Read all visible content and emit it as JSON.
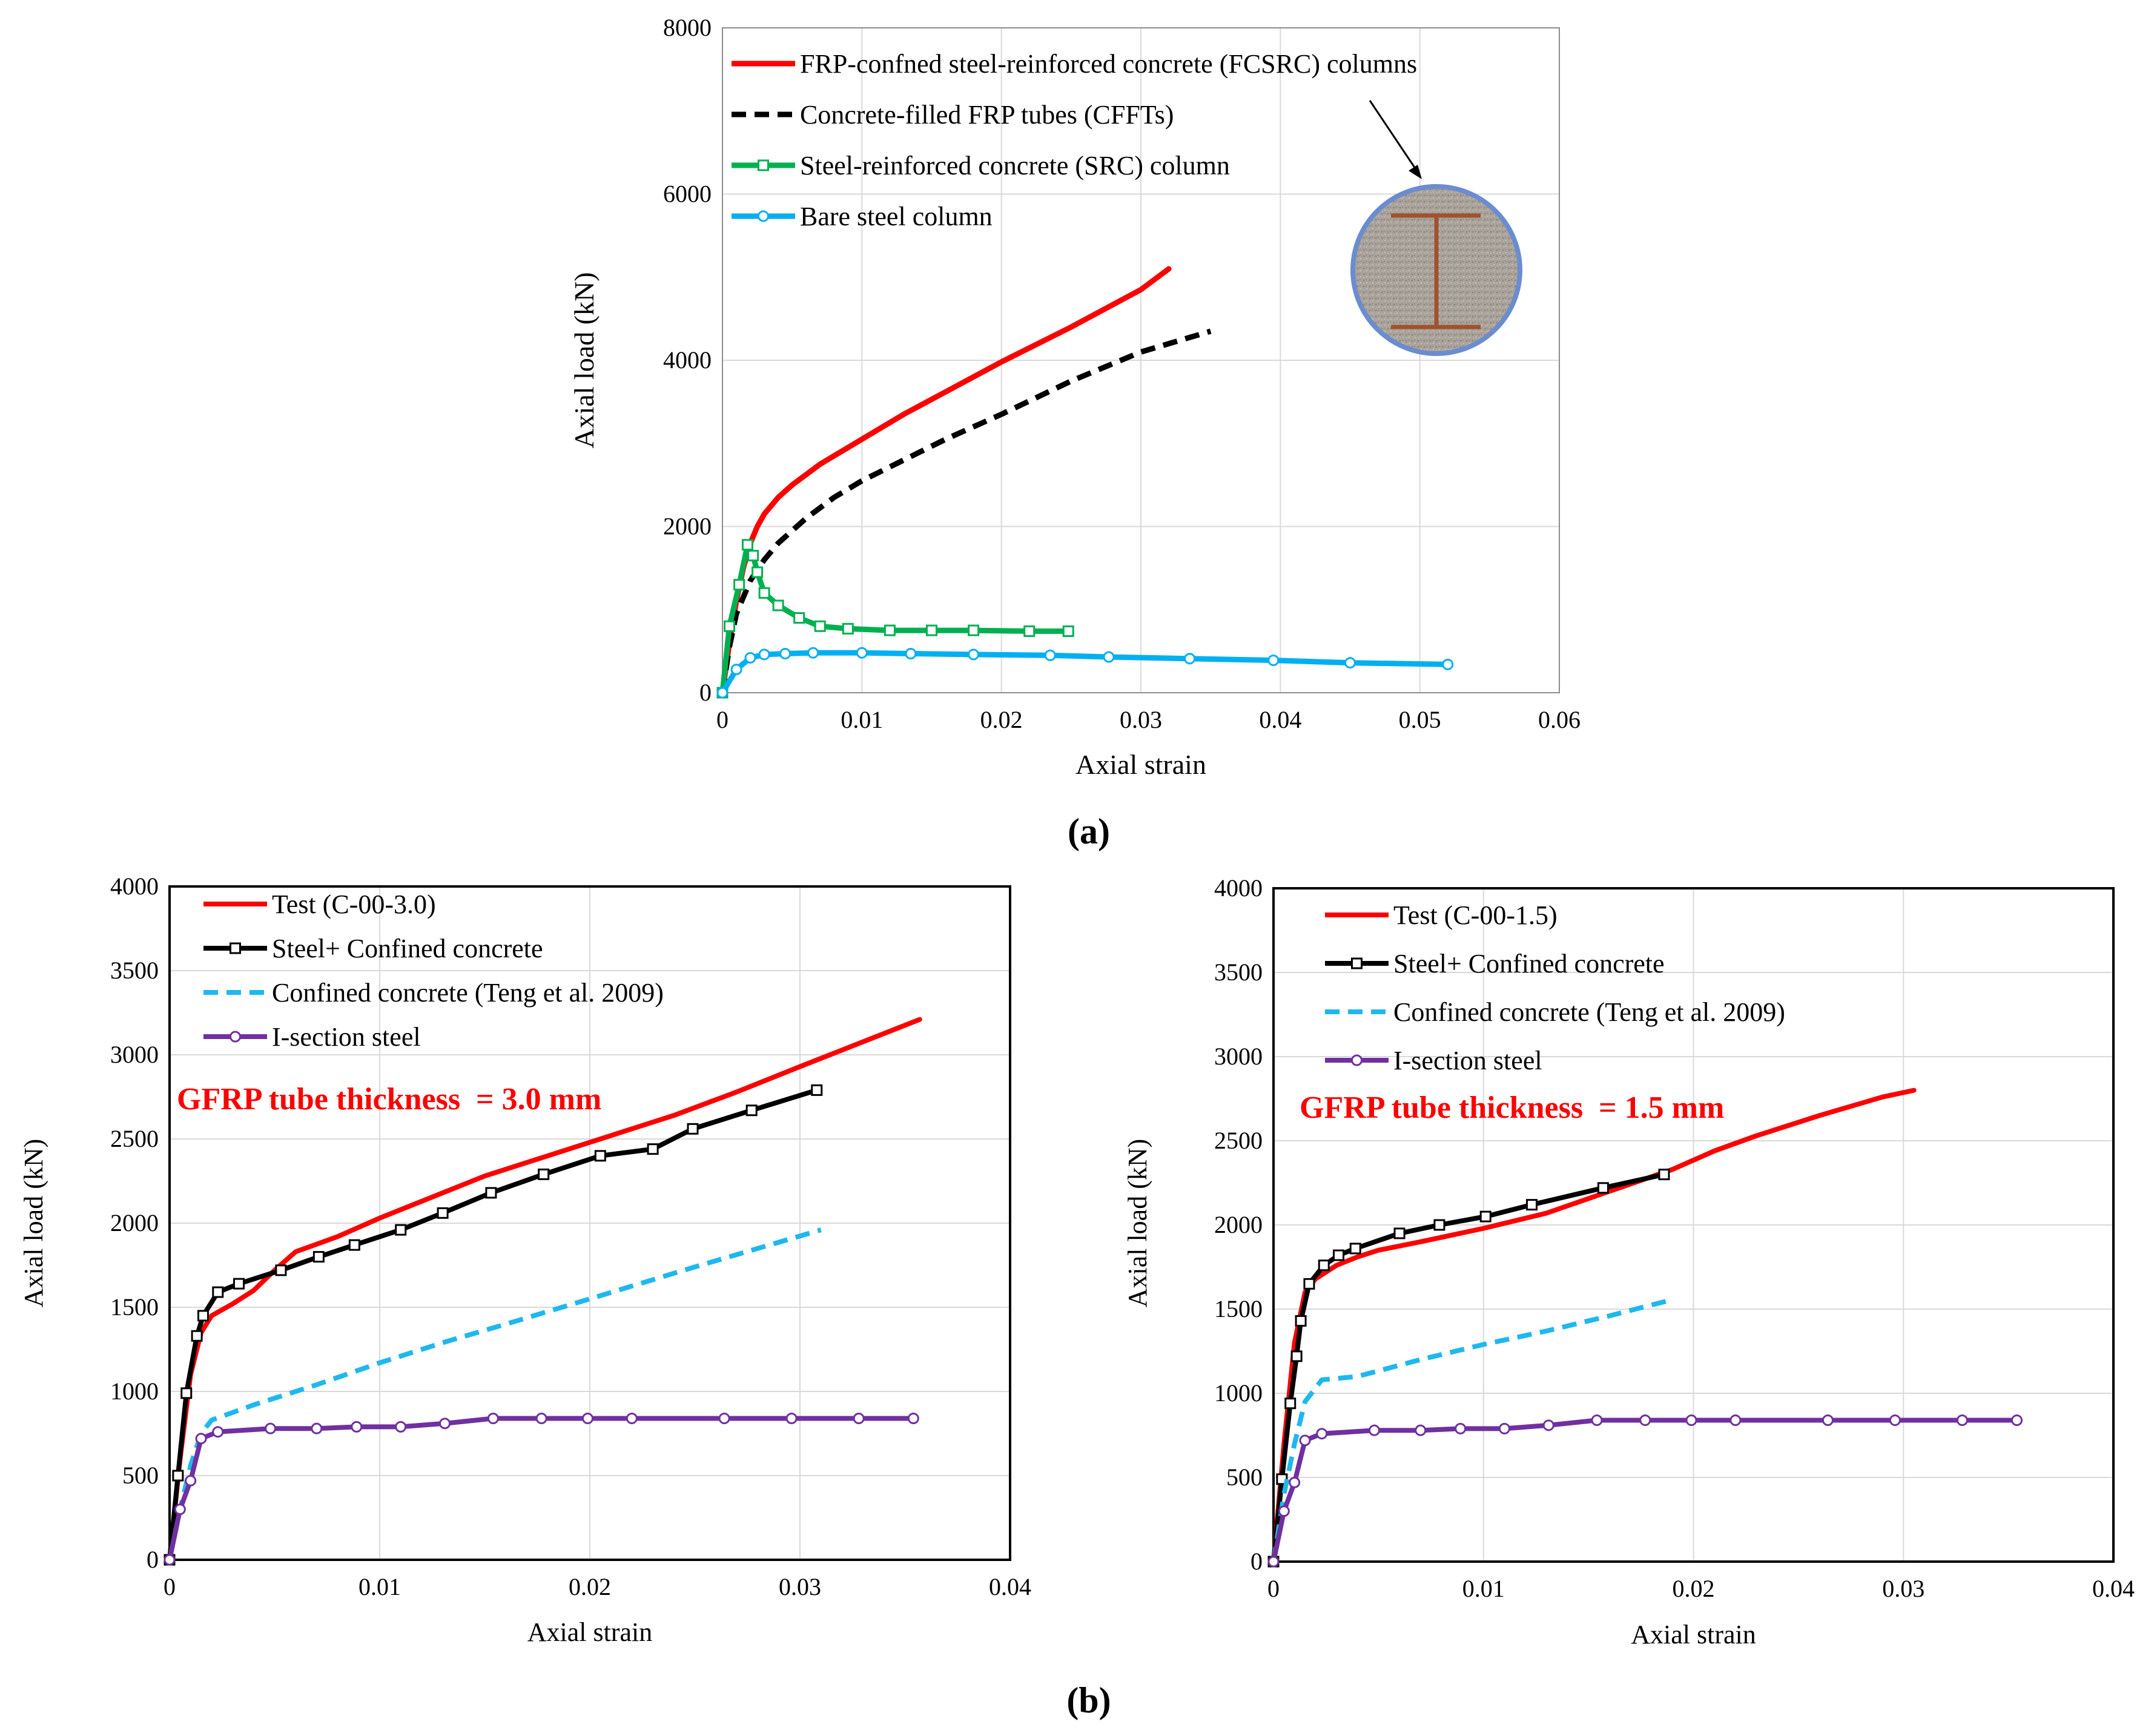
{
  "captions": {
    "a": "(a)",
    "b": "(b)"
  },
  "colors": {
    "red": "#ff0000",
    "black": "#000000",
    "green": "#00b050",
    "lightblue": "#00b0f0",
    "dashblue": "#1fb8ee",
    "purple": "#7030a0",
    "rebar": "#a0522d",
    "ring": "#6b8ccf"
  },
  "chart_data": [
    {
      "id": "a",
      "type": "line",
      "xlabel": "Axial strain",
      "ylabel": "Axial load (kN)",
      "xlim": [
        0,
        0.06
      ],
      "ylim": [
        0,
        8000
      ],
      "xticks": [
        0,
        0.01,
        0.02,
        0.03,
        0.04,
        0.05,
        0.06
      ],
      "xtick_labels": [
        "0",
        "0.01",
        "0.02",
        "0.03",
        "0.04",
        "0.05",
        "0.06"
      ],
      "yticks": [
        0,
        2000,
        4000,
        6000,
        8000
      ],
      "ytick_labels": [
        "0",
        "2000",
        "4000",
        "6000",
        "8000"
      ],
      "grid": true,
      "legend": "top-left",
      "annotation": "column cross-section: circular FRP tube with steel I-section",
      "series": [
        {
          "name": "FRP-confned steel-reinforced concrete (FCSRC) columns",
          "color": "red",
          "style": "solid",
          "marker": "none",
          "x": [
            0,
            0.0005,
            0.001,
            0.0015,
            0.002,
            0.0025,
            0.003,
            0.004,
            0.005,
            0.007,
            0.01,
            0.013,
            0.016,
            0.02,
            0.025,
            0.03,
            0.032
          ],
          "y": [
            0,
            600,
            1100,
            1500,
            1800,
            2000,
            2150,
            2350,
            2500,
            2750,
            3050,
            3350,
            3620,
            3980,
            4400,
            4850,
            5100
          ]
        },
        {
          "name": "Concrete-filled FRP tubes (CFFTs)",
          "color": "black",
          "style": "dashed",
          "marker": "none",
          "x": [
            0,
            0.0005,
            0.001,
            0.002,
            0.003,
            0.004,
            0.006,
            0.008,
            0.01,
            0.013,
            0.016,
            0.02,
            0.025,
            0.03,
            0.035
          ],
          "y": [
            0,
            550,
            950,
            1350,
            1600,
            1800,
            2100,
            2350,
            2550,
            2800,
            3050,
            3350,
            3750,
            4100,
            4350
          ]
        },
        {
          "name": "Steel-reinforced concrete (SRC) column",
          "color": "green",
          "style": "solid",
          "marker": "square",
          "x": [
            0,
            0.0005,
            0.0012,
            0.0018,
            0.0022,
            0.0025,
            0.003,
            0.004,
            0.0055,
            0.007,
            0.009,
            0.012,
            0.015,
            0.018,
            0.022,
            0.0248
          ],
          "y": [
            0,
            800,
            1300,
            1780,
            1650,
            1450,
            1200,
            1050,
            900,
            800,
            770,
            750,
            750,
            750,
            740,
            740
          ]
        },
        {
          "name": "Bare steel column",
          "color": "lightblue",
          "style": "solid",
          "marker": "circle",
          "x": [
            0,
            0.001,
            0.002,
            0.003,
            0.0045,
            0.0065,
            0.01,
            0.0135,
            0.018,
            0.0235,
            0.0277,
            0.0335,
            0.0395,
            0.045,
            0.052
          ],
          "y": [
            0,
            280,
            420,
            460,
            470,
            480,
            480,
            470,
            460,
            450,
            430,
            410,
            390,
            360,
            340
          ]
        }
      ]
    },
    {
      "id": "b1",
      "type": "line",
      "xlabel": "Axial strain",
      "ylabel": "Axial load (kN)",
      "xlim": [
        0,
        0.04
      ],
      "ylim": [
        0,
        4000
      ],
      "xticks": [
        0,
        0.01,
        0.02,
        0.03,
        0.04
      ],
      "xtick_labels": [
        "0",
        "0.01",
        "0.02",
        "0.03",
        "0.04"
      ],
      "yticks": [
        0,
        500,
        1000,
        1500,
        2000,
        2500,
        3000,
        3500,
        4000
      ],
      "ytick_labels": [
        "0",
        "500",
        "1000",
        "1500",
        "2000",
        "2500",
        "3000",
        "3500",
        "4000"
      ],
      "grid": true,
      "legend": "top-left",
      "annotation": "GFRP tube thickness  = 3.0 mm",
      "series": [
        {
          "name": "Test (C-00-3.0)",
          "color": "red",
          "style": "solid",
          "marker": "none",
          "x": [
            0,
            0.0005,
            0.001,
            0.0015,
            0.002,
            0.003,
            0.004,
            0.005,
            0.006,
            0.008,
            0.01,
            0.012,
            0.015,
            0.018,
            0.021,
            0.024,
            0.027,
            0.03,
            0.0357
          ],
          "y": [
            0,
            600,
            1100,
            1350,
            1450,
            1520,
            1600,
            1720,
            1830,
            1920,
            2030,
            2130,
            2280,
            2400,
            2520,
            2640,
            2780,
            2930,
            3210
          ]
        },
        {
          "name": "Steel+ Confined concrete",
          "color": "black",
          "style": "solid",
          "marker": "square",
          "x": [
            0,
            0.0004,
            0.0008,
            0.0013,
            0.0016,
            0.0023,
            0.0033,
            0.0053,
            0.0071,
            0.0088,
            0.011,
            0.013,
            0.0153,
            0.0178,
            0.0205,
            0.023,
            0.0249,
            0.0277,
            0.0308
          ],
          "y": [
            0,
            500,
            990,
            1330,
            1450,
            1590,
            1640,
            1720,
            1800,
            1870,
            1960,
            2060,
            2180,
            2290,
            2400,
            2440,
            2560,
            2670,
            2790
          ]
        },
        {
          "name": "Confined concrete (Teng et al. 2009)",
          "color": "dashblue",
          "style": "dashed",
          "marker": "none",
          "x": [
            0,
            0.0005,
            0.001,
            0.0015,
            0.002,
            0.004,
            0.007,
            0.01,
            0.013,
            0.016,
            0.02,
            0.025,
            0.031
          ],
          "y": [
            0,
            300,
            560,
            750,
            830,
            920,
            1040,
            1170,
            1290,
            1400,
            1550,
            1740,
            1960
          ]
        },
        {
          "name": "I-section steel",
          "color": "purple",
          "style": "solid",
          "marker": "circle",
          "x": [
            0,
            0.0005,
            0.001,
            0.0015,
            0.0023,
            0.0048,
            0.007,
            0.0089,
            0.011,
            0.0131,
            0.0154,
            0.0177,
            0.0199,
            0.022,
            0.0264,
            0.0296,
            0.0328,
            0.0354
          ],
          "y": [
            0,
            300,
            470,
            720,
            760,
            780,
            780,
            790,
            790,
            810,
            840,
            840,
            840,
            840,
            840,
            840,
            840,
            840
          ]
        }
      ]
    },
    {
      "id": "b2",
      "type": "line",
      "xlabel": "Axial strain",
      "ylabel": "Axial load (kN)",
      "xlim": [
        0,
        0.04
      ],
      "ylim": [
        0,
        4000
      ],
      "xticks": [
        0,
        0.01,
        0.02,
        0.03,
        0.04
      ],
      "xtick_labels": [
        "0",
        "0.01",
        "0.02",
        "0.03",
        "0.04"
      ],
      "yticks": [
        0,
        500,
        1000,
        1500,
        2000,
        2500,
        3000,
        3500,
        4000
      ],
      "ytick_labels": [
        "0",
        "500",
        "1000",
        "1500",
        "2000",
        "2500",
        "3000",
        "3500",
        "4000"
      ],
      "grid": true,
      "legend": "top-left",
      "annotation": "GFRP tube thickness  = 1.5 mm",
      "series": [
        {
          "name": "Test (C-00-1.5)",
          "color": "red",
          "style": "solid",
          "marker": "none",
          "x": [
            0,
            0.0005,
            0.001,
            0.0015,
            0.002,
            0.003,
            0.004,
            0.005,
            0.007,
            0.01,
            0.013,
            0.016,
            0.019,
            0.021,
            0.023,
            0.026,
            0.029,
            0.0305
          ],
          "y": [
            0,
            700,
            1300,
            1600,
            1680,
            1760,
            1810,
            1850,
            1900,
            1980,
            2070,
            2200,
            2330,
            2440,
            2530,
            2650,
            2760,
            2800
          ]
        },
        {
          "name": "Steel+ Confined concrete",
          "color": "black",
          "style": "solid",
          "marker": "square",
          "x": [
            0,
            0.0004,
            0.0008,
            0.0011,
            0.0013,
            0.0017,
            0.0024,
            0.0031,
            0.0039,
            0.006,
            0.0079,
            0.0101,
            0.0123,
            0.0157,
            0.0186
          ],
          "y": [
            0,
            490,
            940,
            1220,
            1430,
            1650,
            1760,
            1820,
            1860,
            1950,
            2000,
            2050,
            2120,
            2220,
            2300
          ]
        },
        {
          "name": "Confined concrete (Teng et al. 2009)",
          "color": "dashblue",
          "style": "dashed",
          "marker": "none",
          "x": [
            0,
            0.0005,
            0.001,
            0.0015,
            0.0023,
            0.004,
            0.007,
            0.01,
            0.013,
            0.016,
            0.0188
          ],
          "y": [
            0,
            400,
            700,
            950,
            1080,
            1100,
            1200,
            1290,
            1370,
            1460,
            1550
          ]
        },
        {
          "name": "I-section steel",
          "color": "purple",
          "style": "solid",
          "marker": "circle",
          "x": [
            0,
            0.0005,
            0.001,
            0.0015,
            0.0023,
            0.0048,
            0.007,
            0.0089,
            0.011,
            0.0131,
            0.0154,
            0.0177,
            0.0199,
            0.022,
            0.0264,
            0.0296,
            0.0328,
            0.0354
          ],
          "y": [
            0,
            300,
            470,
            720,
            760,
            780,
            780,
            790,
            790,
            810,
            840,
            840,
            840,
            840,
            840,
            840,
            840,
            840
          ]
        }
      ]
    }
  ]
}
